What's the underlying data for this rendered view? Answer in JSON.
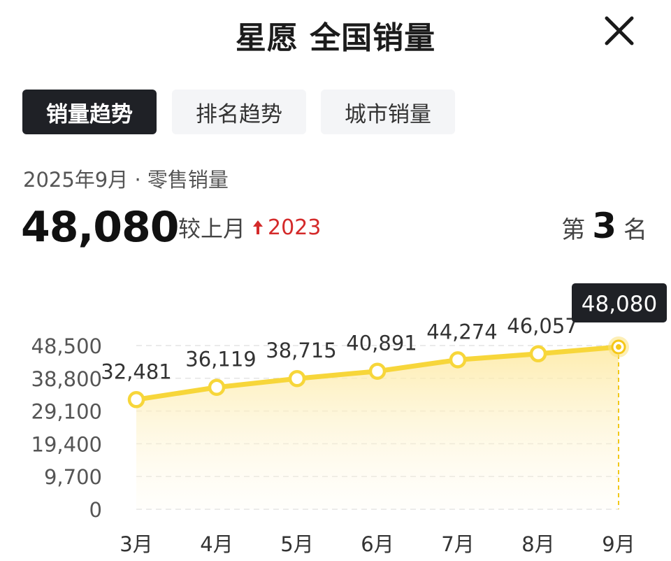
{
  "header": {
    "title": "星愿 全国销量",
    "close_icon": "close-icon"
  },
  "tabs": [
    {
      "label": "销量趋势",
      "active": true
    },
    {
      "label": "排名趋势",
      "active": false
    },
    {
      "label": "城市销量",
      "active": false
    }
  ],
  "summary": {
    "subtitle": "2025年9月 · 零售销量",
    "value": "48,080",
    "compare_label": "较上月",
    "delta": "2023",
    "delta_color": "#d42a2a",
    "rank_prefix": "第",
    "rank": "3",
    "rank_suffix": "名"
  },
  "chart_data": {
    "type": "area",
    "categories": [
      "3月",
      "4月",
      "5月",
      "6月",
      "7月",
      "8月",
      "9月"
    ],
    "values": [
      32481,
      36119,
      38715,
      40891,
      44274,
      46057,
      48080
    ],
    "data_labels": [
      "32,481",
      "36,119",
      "38,715",
      "40,891",
      "44,274",
      "46,057",
      "48,080"
    ],
    "y_ticks": [
      0,
      9700,
      19400,
      29100,
      38800,
      48500
    ],
    "y_tick_labels": [
      "0",
      "9,700",
      "19,400",
      "29,100",
      "38,800",
      "48,500"
    ],
    "ylim": [
      0,
      48500
    ],
    "highlight_index": 6,
    "grid": true,
    "line_color": "#f7d63a",
    "fill_color": "#fdefb5",
    "title": "",
    "xlabel": "",
    "ylabel": ""
  }
}
